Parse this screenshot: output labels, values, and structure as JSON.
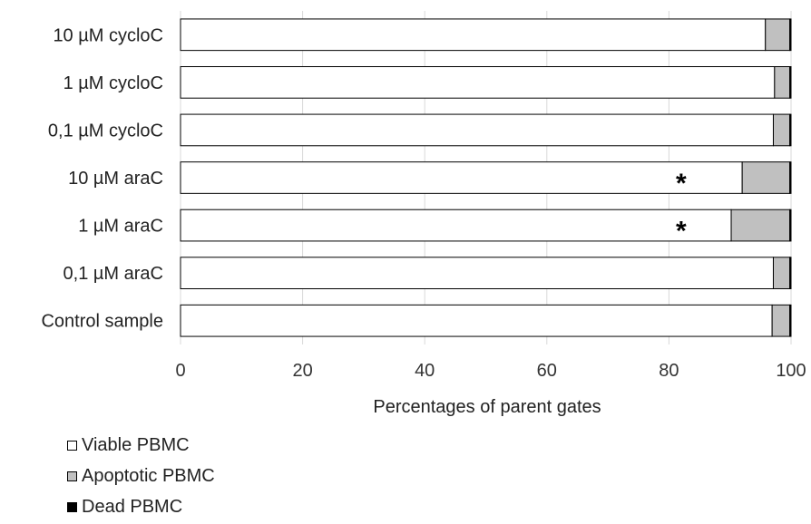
{
  "chart_data": {
    "type": "bar",
    "orientation": "horizontal",
    "stacked": true,
    "categories": [
      "10 µM cycloC",
      "1 µM cycloC",
      "0,1 µM cycloC",
      "10 µM araC",
      "1 µM araC",
      "0,1 µM araC",
      "Control sample"
    ],
    "series": [
      {
        "name": "Viable PBMC",
        "color": "#ffffff",
        "values": [
          95.8,
          97.3,
          97.1,
          92.0,
          90.2,
          97.1,
          96.9
        ]
      },
      {
        "name": "Apoptotic PBMC",
        "color": "#c0c0c0",
        "values": [
          4.0,
          2.5,
          2.7,
          7.8,
          9.6,
          2.7,
          2.9
        ]
      },
      {
        "name": "Dead PBMC",
        "color": "#000000",
        "values": [
          0.2,
          0.2,
          0.2,
          0.2,
          0.2,
          0.2,
          0.2
        ]
      }
    ],
    "xlabel": "Percentages of parent gates",
    "xlim": [
      0,
      100
    ],
    "xticks": [
      0,
      20,
      40,
      60,
      80,
      100
    ],
    "annotations": [
      {
        "category": "10 µM araC",
        "text": "*",
        "x": 82
      },
      {
        "category": "1 µM araC",
        "text": "*",
        "x": 82
      }
    ],
    "legend_position": "bottom-left",
    "grid": true
  }
}
